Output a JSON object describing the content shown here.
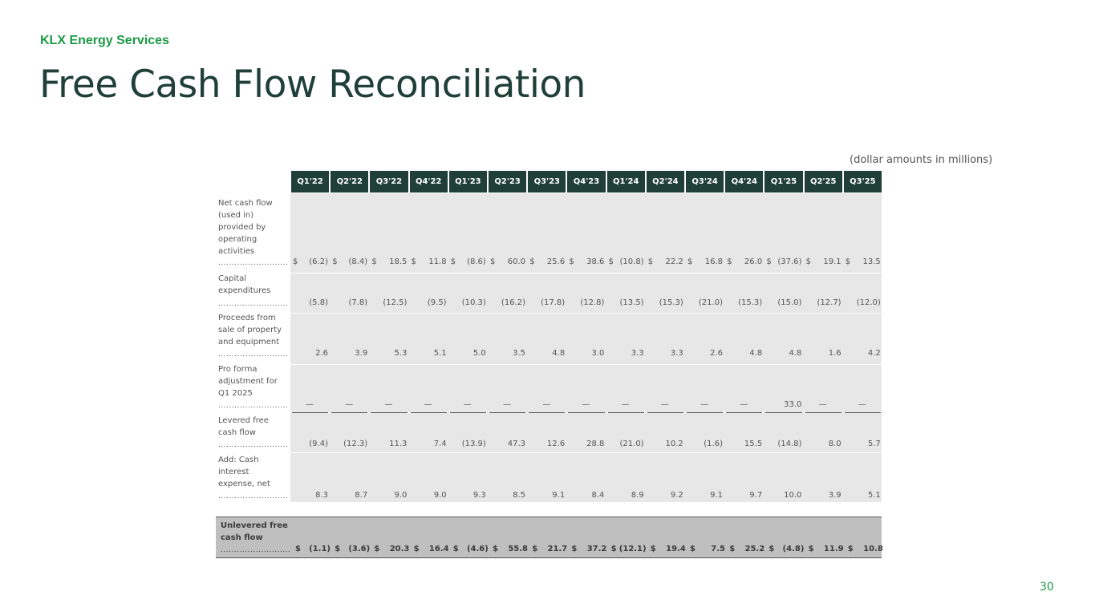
{
  "header": {
    "company": "KLX Energy Services",
    "title": "Free Cash Flow Reconciliation",
    "units_note": "(dollar amounts in millions)",
    "page_number": "30"
  },
  "table": {
    "quarters": [
      "Q1'22",
      "Q2'22",
      "Q3'22",
      "Q4'22",
      "Q1'23",
      "Q2'23",
      "Q3'23",
      "Q4'23",
      "Q1'24",
      "Q2'24",
      "Q3'24",
      "Q4'24",
      "Q1'25",
      "Q2'25",
      "Q3'25"
    ],
    "leader_dots": "...........................",
    "rows": [
      {
        "label": [
          "Net cash flow",
          "(used in)",
          "provided by",
          "operating",
          "activities"
        ],
        "currency": "$",
        "values": [
          "(6.2)",
          "(8.4)",
          "18.5",
          "11.8",
          "(8.6)",
          "60.0",
          "25.6",
          "38.6",
          "(10.8)",
          "22.2",
          "16.8",
          "26.0",
          "(37.6)",
          "19.1",
          "13.5"
        ]
      },
      {
        "label": [
          "Capital",
          "expenditures"
        ],
        "currency": "",
        "values": [
          "(5.8)",
          "(7.8)",
          "(12.5)",
          "(9.5)",
          "(10.3)",
          "(16.2)",
          "(17.8)",
          "(12.8)",
          "(13.5)",
          "(15.3)",
          "(21.0)",
          "(15.3)",
          "(15.0)",
          "(12.7)",
          "(12.0)"
        ]
      },
      {
        "label": [
          "Proceeds from",
          "sale of property",
          "and equipment"
        ],
        "currency": "",
        "values": [
          "2.6",
          "3.9",
          "5.3",
          "5.1",
          "5.0",
          "3.5",
          "4.8",
          "3.0",
          "3.3",
          "3.3",
          "2.6",
          "4.8",
          "4.8",
          "1.6",
          "4.2"
        ]
      },
      {
        "label": [
          "Pro forma",
          "adjustment for",
          "Q1 2025"
        ],
        "currency": "",
        "values": [
          "—",
          "—",
          "—",
          "—",
          "—",
          "—",
          "—",
          "—",
          "—",
          "—",
          "—",
          "—",
          "33.0",
          "—",
          "—"
        ]
      },
      {
        "label": [
          "Levered free",
          "cash flow"
        ],
        "currency": "",
        "values": [
          "(9.4)",
          "(12.3)",
          "11.3",
          "7.4",
          "(13.9)",
          "47.3",
          "12.6",
          "28.8",
          "(21.0)",
          "10.2",
          "(1.6)",
          "15.5",
          "(14.8)",
          "8.0",
          "5.7"
        ]
      },
      {
        "label": [
          "Add: Cash",
          "interest",
          "expense, net"
        ],
        "currency": "",
        "values": [
          "8.3",
          "8.7",
          "9.0",
          "9.0",
          "9.3",
          "8.5",
          "9.1",
          "8.4",
          "8.9",
          "9.2",
          "9.1",
          "9.7",
          "10.0",
          "3.9",
          "5.1"
        ]
      }
    ],
    "total": {
      "label": [
        "Unlevered free",
        "cash flow"
      ],
      "currency": "$",
      "values": [
        "(1.1)",
        "(3.6)",
        "20.3",
        "16.4",
        "(4.6)",
        "55.8",
        "21.7",
        "37.2",
        "(12.1)",
        "19.4",
        "7.5",
        "25.2",
        "(4.8)",
        "11.9",
        "10.8"
      ]
    }
  }
}
